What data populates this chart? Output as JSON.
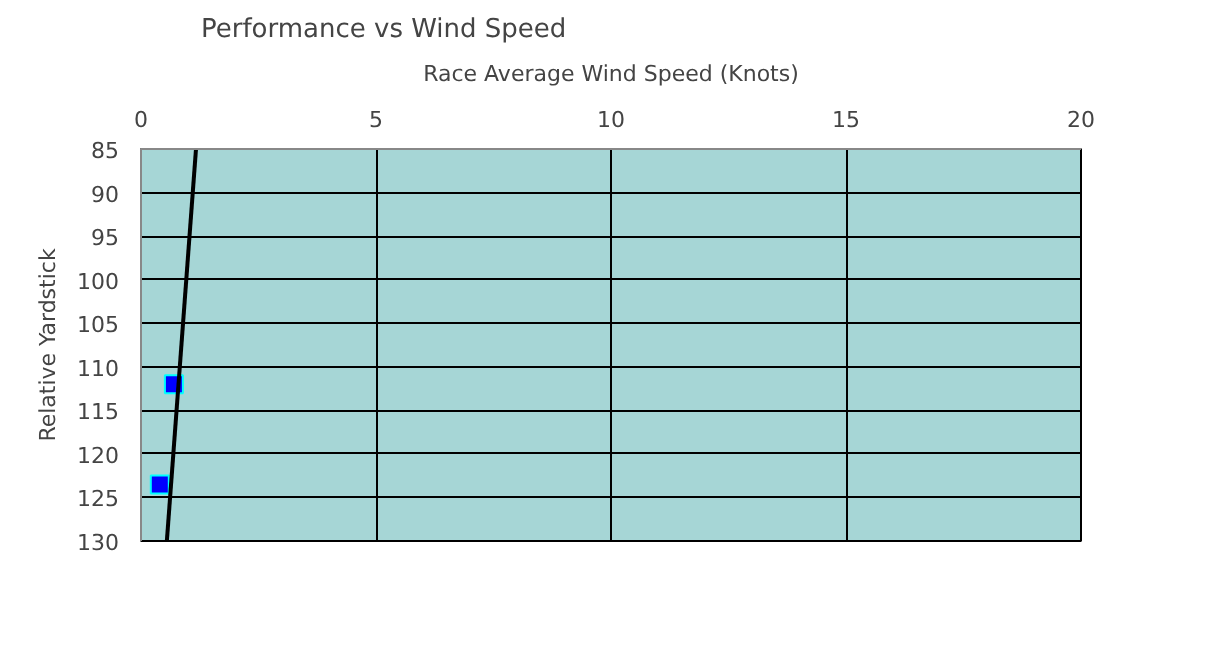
{
  "chart_data": {
    "type": "scatter",
    "title": "Performance vs Wind Speed",
    "xlabel": "Race Average Wind Speed (Knots)",
    "ylabel": "Relative Yardstick",
    "xlim": [
      0,
      20
    ],
    "xticks": [
      0,
      5,
      10,
      15,
      20
    ],
    "ylim": [
      130,
      85
    ],
    "yticks": [
      85,
      90,
      95,
      100,
      105,
      110,
      115,
      120,
      125,
      130
    ],
    "grid": true,
    "series": [
      {
        "color": "#0000ff",
        "marker": "square",
        "x": [
          0.7,
          0.4
        ],
        "values": [
          112,
          123.5
        ]
      },
      {
        "type": "line",
        "color": "#000000",
        "x": [
          1.17,
          0.55
        ],
        "values": [
          85,
          130
        ]
      }
    ]
  }
}
